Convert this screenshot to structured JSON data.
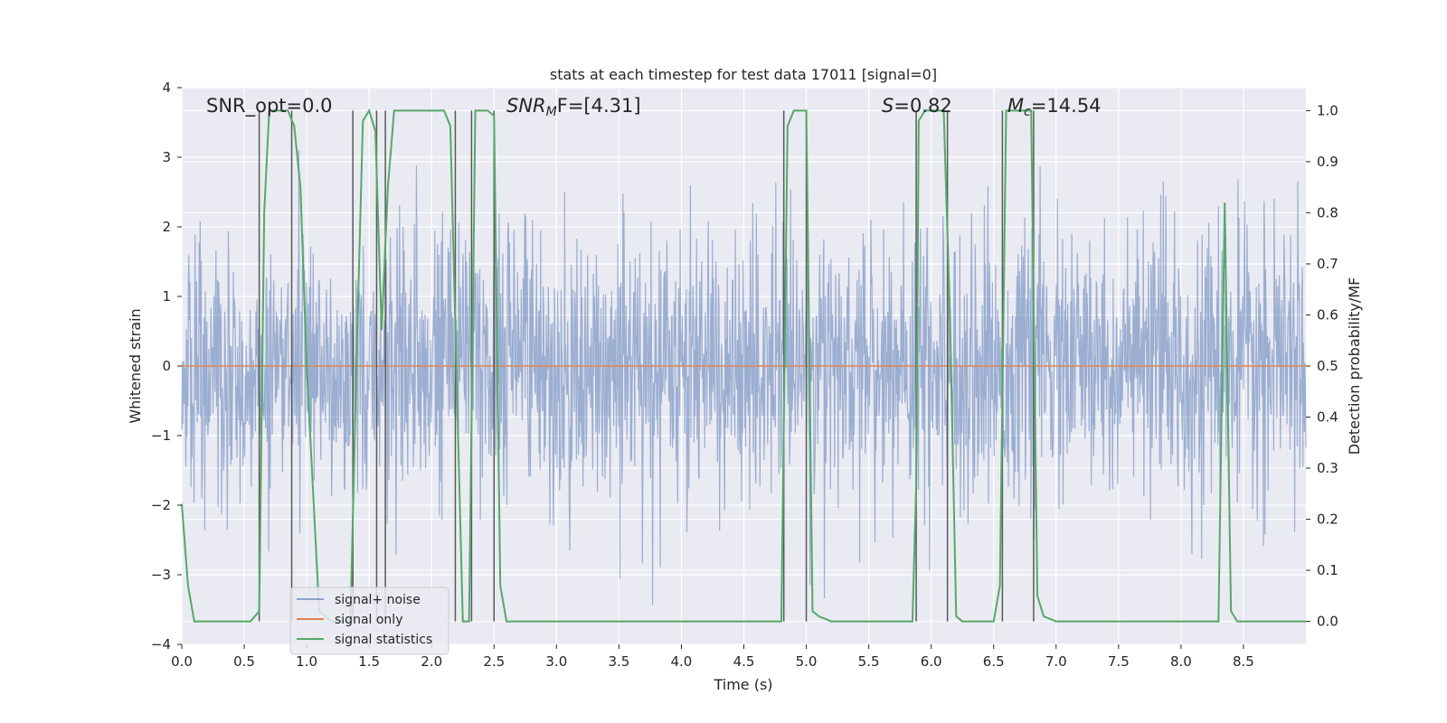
{
  "chart_data": {
    "type": "line",
    "title": "stats at each timestep for test data 17011 [signal=0]",
    "xlabel": "Time (s)",
    "ylabel": "Whitened strain",
    "y2label": "Detection probability/MF",
    "xlim": [
      0.0,
      9.0
    ],
    "ylim": [
      -4.0,
      4.0
    ],
    "y2lim": [
      -0.045,
      1.045
    ],
    "xticks": [
      "0.0",
      "0.5",
      "1.0",
      "1.5",
      "2.0",
      "2.5",
      "3.0",
      "3.5",
      "4.0",
      "4.5",
      "5.0",
      "5.5",
      "6.0",
      "6.5",
      "7.0",
      "7.5",
      "8.0",
      "8.5"
    ],
    "yticks": [
      "4",
      "3",
      "2",
      "1",
      "0",
      "−1",
      "−2",
      "−3",
      "−4"
    ],
    "y2ticks": [
      "1.0",
      "0.9",
      "0.8",
      "0.7",
      "0.6",
      "0.5",
      "0.4",
      "0.3",
      "0.2",
      "0.1",
      "0.0"
    ],
    "stats": {
      "snr_opt": "SNR_opt=0.0",
      "snr_mf_main": "SNR",
      "snr_mf_sub": "M",
      "snr_mf_rest": "F=[4.31]",
      "s_main": "S",
      "s_rest": "=0.82",
      "mc_main": "M",
      "mc_sub": "c",
      "mc_rest": "=14.54"
    },
    "legend": {
      "position": "lower-left",
      "entries": [
        "signal+ noise",
        "signal only",
        "signal statistics"
      ]
    },
    "colors": {
      "noise": "#4c72b0",
      "signal": "#dd8452",
      "stats": "#55a868",
      "vlines": "#595959",
      "background": "#eaeaf2",
      "grid": "#ffffff"
    },
    "series": [
      {
        "name": "signal+ noise",
        "description": "dense whitened strain noise trace",
        "envelope": {
          "x": [
            0.0,
            9.0
          ],
          "typical_amplitude": 1.7,
          "peak_amplitude": 3.8,
          "samples": 2200
        }
      },
      {
        "name": "signal only",
        "x": [
          0.0,
          9.0
        ],
        "y": [
          0.0,
          0.0
        ]
      },
      {
        "name": "signal statistics",
        "axis": "right",
        "x": [
          0.0,
          0.05,
          0.1,
          0.2,
          0.3,
          0.4,
          0.5,
          0.52,
          0.55,
          0.62,
          0.66,
          0.7,
          0.75,
          0.85,
          0.9,
          0.95,
          1.0,
          1.1,
          1.2,
          1.3,
          1.35,
          1.4,
          1.45,
          1.5,
          1.55,
          1.6,
          1.65,
          1.7,
          1.8,
          1.9,
          2.0,
          2.1,
          2.15,
          2.2,
          2.25,
          2.3,
          2.35,
          2.4,
          2.45,
          2.5,
          2.55,
          2.6,
          2.7,
          3.0,
          3.5,
          4.0,
          4.5,
          4.8,
          4.85,
          4.9,
          4.95,
          5.0,
          5.05,
          5.1,
          5.2,
          5.5,
          5.85,
          5.88,
          5.9,
          5.95,
          6.0,
          6.05,
          6.1,
          6.15,
          6.2,
          6.25,
          6.3,
          6.4,
          6.5,
          6.55,
          6.6,
          6.65,
          6.7,
          6.75,
          6.8,
          6.85,
          6.9,
          7.0,
          7.1,
          7.3,
          7.5,
          8.0,
          8.3,
          8.35,
          8.4,
          8.45,
          8.6,
          9.0
        ],
        "y": [
          0.23,
          0.07,
          0.0,
          0.0,
          0.0,
          0.0,
          0.0,
          0.0,
          0.0,
          0.02,
          0.8,
          1.0,
          1.0,
          1.0,
          0.97,
          0.85,
          0.5,
          0.02,
          0.0,
          0.0,
          0.0,
          0.52,
          0.98,
          1.0,
          0.96,
          0.57,
          0.85,
          1.0,
          1.0,
          1.0,
          1.0,
          1.0,
          0.97,
          0.48,
          0.0,
          0.0,
          1.0,
          1.0,
          1.0,
          0.99,
          0.07,
          0.0,
          0.0,
          0.0,
          0.0,
          0.0,
          0.0,
          0.0,
          0.97,
          1.0,
          1.0,
          1.0,
          0.02,
          0.01,
          0.0,
          0.0,
          0.0,
          0.27,
          0.98,
          1.0,
          1.0,
          1.0,
          1.0,
          0.6,
          0.01,
          0.0,
          0.0,
          0.0,
          0.0,
          0.07,
          1.0,
          1.0,
          1.0,
          1.0,
          1.0,
          0.05,
          0.01,
          0.0,
          0.0,
          0.0,
          0.0,
          0.0,
          0.0,
          0.82,
          0.02,
          0.0,
          0.0,
          0.0
        ]
      }
    ],
    "vlines": [
      0.62,
      0.88,
      1.37,
      1.56,
      1.63,
      2.19,
      2.32,
      2.5,
      4.82,
      5.0,
      5.88,
      6.13,
      6.57,
      6.82
    ]
  }
}
